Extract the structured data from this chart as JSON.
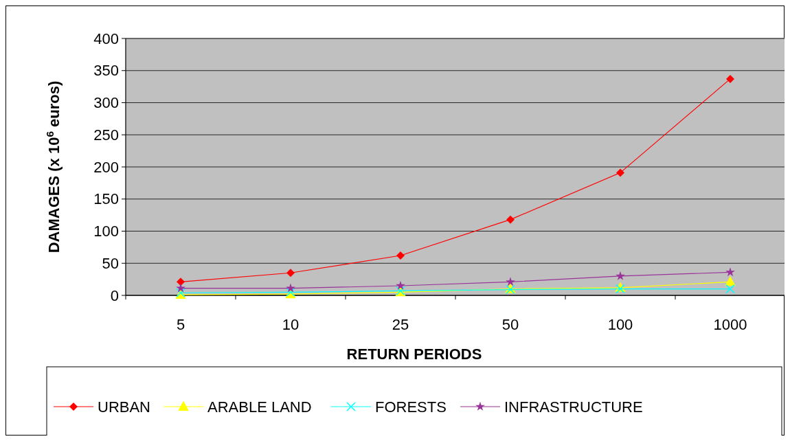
{
  "chart_data": {
    "type": "line",
    "xlabel": "RETURN PERIODS",
    "ylabel": "DAMAGES (x 10$^{6}$ euros)",
    "categories": [
      "5",
      "10",
      "25",
      "50",
      "100",
      "1000"
    ],
    "series": [
      {
        "name": "URBAN",
        "color": "#ff0000",
        "marker": "diamond",
        "values": [
          21,
          35,
          62,
          118,
          191,
          337
        ]
      },
      {
        "name": "ARABLE LAND",
        "color": "#ffff00",
        "marker": "triangle",
        "values": [
          1,
          2,
          5,
          10,
          12,
          21
        ]
      },
      {
        "name": "FORESTS",
        "color": "#00ffff",
        "marker": "cross",
        "values": [
          4,
          5,
          7,
          9,
          10,
          10
        ]
      },
      {
        "name": "INFRASTRUCTURE",
        "color": "#993399",
        "marker": "star",
        "values": [
          11,
          11,
          15,
          21,
          30,
          36
        ]
      }
    ],
    "ylim": [
      0,
      400
    ],
    "yticks": [
      0,
      50,
      100,
      150,
      200,
      250,
      300,
      350,
      400
    ],
    "grid": "y",
    "legend": "bottom"
  }
}
